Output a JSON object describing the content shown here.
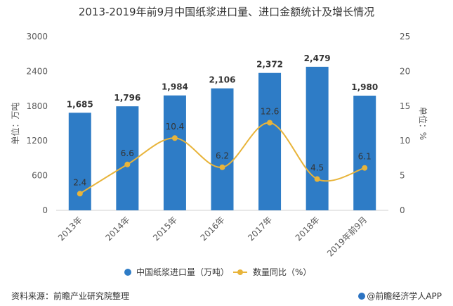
{
  "chart_data": {
    "type": "bar",
    "title": "2013-2019年前9月中国纸浆进口量、进口金额统计及增长情况",
    "categories": [
      "2013年",
      "2014年",
      "2015年",
      "2016年",
      "2017年",
      "2018年",
      "2019年前9月"
    ],
    "series": [
      {
        "name": "中国纸浆进口量（万吨）",
        "type": "bar",
        "axis": "left",
        "color": "#2e7cc6",
        "values": [
          1685,
          1796,
          1984,
          2106,
          2372,
          2479,
          1980
        ],
        "labels": [
          "1,685",
          "1,796",
          "1,984",
          "2,106",
          "2,372",
          "2,479",
          "1,980"
        ]
      },
      {
        "name": "数量同比（%）",
        "type": "line",
        "axis": "right",
        "color": "#e8b43a",
        "values": [
          2.4,
          6.6,
          10.4,
          6.2,
          12.6,
          4.5,
          6.1
        ],
        "labels": [
          "2.4",
          "6.6",
          "10.4",
          "6.2",
          "12.6",
          "4.5",
          "6.1"
        ]
      }
    ],
    "yleft": {
      "label": "单位：万吨",
      "min": 0,
      "max": 3000,
      "ticks": [
        "0",
        "600",
        "1200",
        "1800",
        "2400",
        "3000"
      ]
    },
    "yright": {
      "label": "单位：%",
      "min": 0,
      "max": 25,
      "ticks": [
        "0",
        "5",
        "10",
        "15",
        "20",
        "25"
      ]
    },
    "legend_position": "bottom"
  },
  "footer": {
    "source": "资料来源：前瞻产业研究院整理",
    "brand": "@前瞻经济学人APP"
  }
}
